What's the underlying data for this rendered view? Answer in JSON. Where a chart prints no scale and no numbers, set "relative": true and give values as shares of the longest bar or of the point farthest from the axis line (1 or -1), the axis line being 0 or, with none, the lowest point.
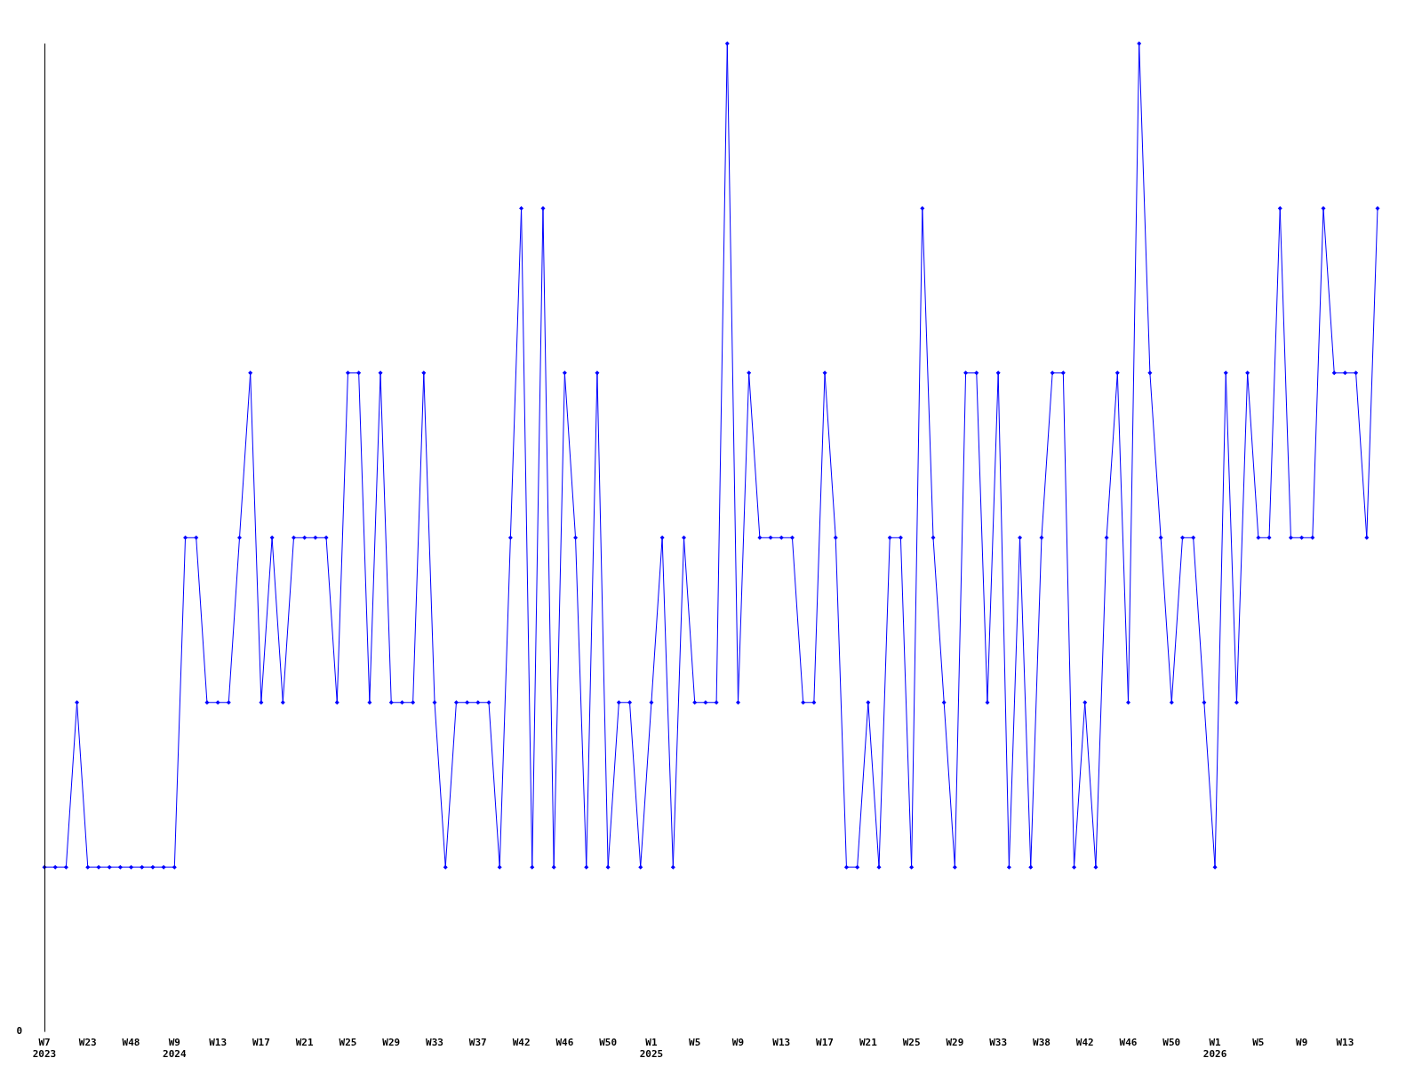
{
  "chart_data": {
    "type": "line",
    "relative": true,
    "grid": false,
    "legend": false,
    "marker": "diamond",
    "line_style": "solid",
    "annotations": [
      "0"
    ],
    "categories": [
      "W7\n2023",
      null,
      null,
      null,
      "W23",
      null,
      null,
      null,
      "W48",
      null,
      null,
      null,
      "W9\n2024",
      null,
      null,
      null,
      "W13",
      null,
      null,
      null,
      "W17",
      null,
      null,
      null,
      "W21",
      null,
      null,
      null,
      "W25",
      null,
      null,
      null,
      "W29",
      null,
      null,
      null,
      "W33",
      null,
      null,
      null,
      "W37",
      null,
      null,
      null,
      "W42",
      null,
      null,
      null,
      "W46",
      null,
      null,
      null,
      "W50",
      null,
      null,
      null,
      "W1\n2025",
      null,
      null,
      null,
      "W5",
      null,
      null,
      null,
      "W9",
      null,
      null,
      null,
      "W13",
      null,
      null,
      null,
      "W17",
      null,
      null,
      null,
      "W21",
      null,
      null,
      null,
      "W25",
      null,
      null,
      null,
      "W29",
      null,
      null,
      null,
      "W33",
      null,
      null,
      null,
      "W38",
      null,
      null,
      null,
      "W42",
      null,
      null,
      null,
      "W46",
      null,
      null,
      null,
      "W50",
      null,
      null,
      null,
      "W1\n2026",
      null,
      null,
      null,
      "W5",
      null,
      null,
      null,
      "W9",
      null,
      null,
      null,
      "W13",
      null,
      null,
      null
    ],
    "series": [
      {
        "color": "#0000ff",
        "values": [
          0.1667,
          0.1667,
          0.1667,
          0.3333,
          0.1667,
          0.1667,
          0.1667,
          0.1667,
          0.1667,
          0.1667,
          0.1667,
          0.1667,
          0.1667,
          0.5,
          0.5,
          0.3333,
          0.3333,
          0.3333,
          0.5,
          0.6667,
          0.3333,
          0.5,
          0.3333,
          0.5,
          0.5,
          0.5,
          0.5,
          0.3333,
          0.6667,
          0.6667,
          0.3333,
          0.6667,
          0.3333,
          0.3333,
          0.3333,
          0.6667,
          0.3333,
          0.1667,
          0.3333,
          0.3333,
          0.3333,
          0.3333,
          0.1667,
          0.5,
          0.8333,
          0.1667,
          0.8333,
          0.1667,
          0.6667,
          0.5,
          0.1667,
          0.6667,
          0.1667,
          0.3333,
          0.3333,
          0.1667,
          0.3333,
          0.5,
          0.1667,
          0.5,
          0.3333,
          0.3333,
          0.3333,
          1,
          0.3333,
          0.6667,
          0.5,
          0.5,
          0.5,
          0.5,
          0.3333,
          0.3333,
          0.6667,
          0.5,
          0.1667,
          0.1667,
          0.3333,
          0.1667,
          0.5,
          0.5,
          0.1667,
          0.8333,
          0.5,
          0.3333,
          0.1667,
          0.6667,
          0.6667,
          0.3333,
          0.6667,
          0.1667,
          0.5,
          0.1667,
          0.5,
          0.6667,
          0.6667,
          0.1667,
          0.3333,
          0.1667,
          0.5,
          0.6667,
          0.3333,
          1,
          0.6667,
          0.5,
          0.3333,
          0.5,
          0.5,
          0.3333,
          0.1667,
          0.6667,
          0.3333,
          0.6667,
          0.5,
          0.5,
          0.8333,
          0.5,
          0.5,
          0.5,
          0.8333,
          0.6667,
          0.6667,
          0.6667,
          0.5,
          0.8333
        ]
      }
    ]
  }
}
